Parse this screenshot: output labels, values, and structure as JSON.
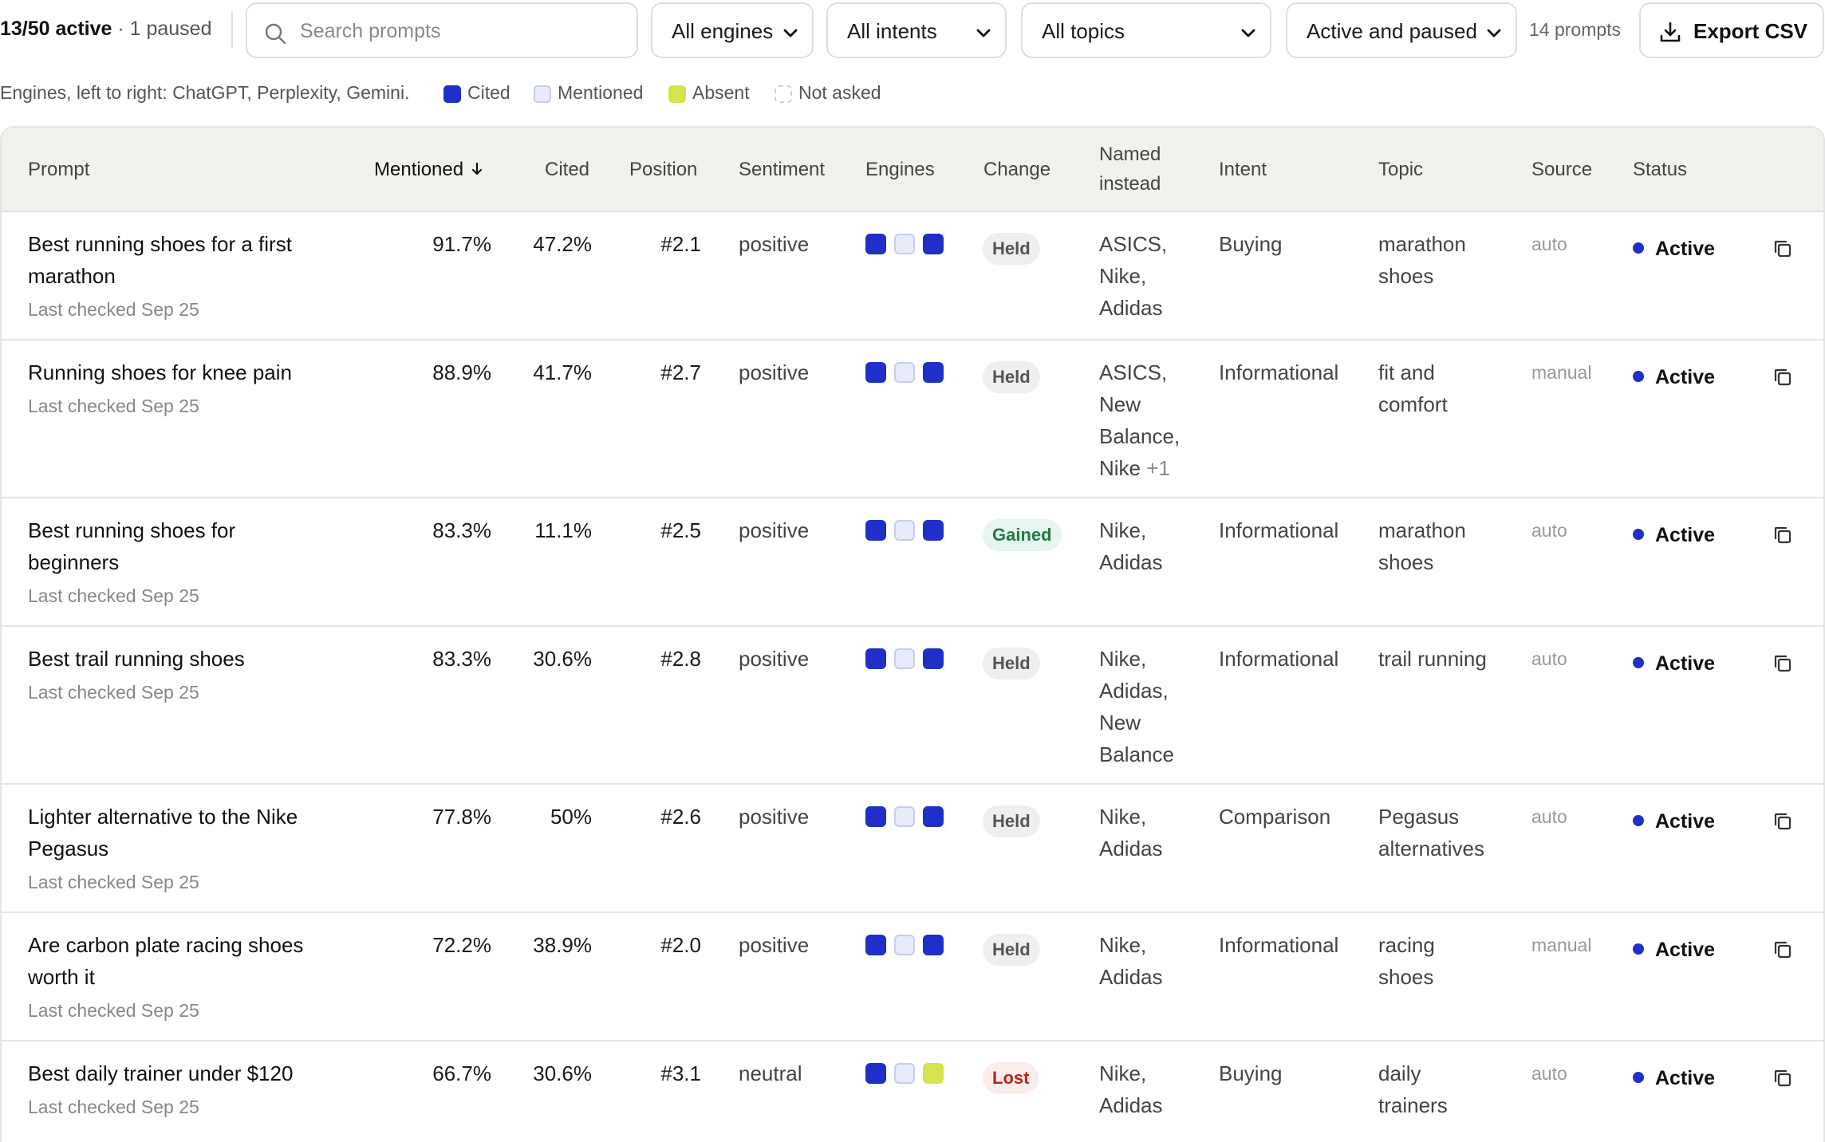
{
  "toolbar": {
    "count_active": "13/50 active",
    "count_paused": " · 1 paused",
    "search_placeholder": "Search prompts",
    "filters": {
      "engines": "All engines",
      "intents": "All intents",
      "topics": "All topics",
      "status": "Active and paused"
    },
    "prompt_count": "14 prompts",
    "export_label": "Export CSV",
    "icons": {
      "search": "search-icon",
      "chevron": "chevron-down-icon",
      "export": "download-icon"
    }
  },
  "legend": {
    "note": "Engines, left to right: ChatGPT, Perplexity, Gemini.",
    "items": [
      {
        "label": "Cited",
        "color": "#1f2fc7"
      },
      {
        "label": "Mentioned",
        "color": "#e8ebfa"
      },
      {
        "label": "Absent",
        "color": "#d6e34a"
      },
      {
        "label": "Not asked",
        "color": "#ffffff"
      }
    ]
  },
  "table": {
    "headers": {
      "prompt": "Prompt",
      "mentioned": "Mentioned",
      "cited": "Cited",
      "position": "Position",
      "sentiment": "Sentiment",
      "engines": "Engines",
      "change": "Change",
      "named_instead_1": "Named",
      "named_instead_2": "instead",
      "intent": "Intent",
      "topic": "Topic",
      "source": "Source",
      "status": "Status"
    },
    "sort_icon": "arrow-down-icon",
    "copy_icon": "copy-icon",
    "status_label": "Active",
    "change_colors": {
      "Held": {
        "bg": "#efefef",
        "fg": "#555555"
      },
      "Gained": {
        "bg": "#e6f6ee",
        "fg": "#1f7a44"
      },
      "Lost": {
        "bg": "#fdecec",
        "fg": "#b3261e"
      }
    },
    "rows": [
      {
        "title_lines": [
          "Best running shoes for a first",
          "marathon"
        ],
        "checked": "Last checked Sep 25",
        "mentioned": "91.7%",
        "cited": "47.2%",
        "position": "#2.1",
        "sentiment": "positive",
        "engines": [
          "Cited",
          "Mentioned",
          "Cited"
        ],
        "change": "Held",
        "named_lines": [
          "ASICS,",
          "Nike,",
          "Adidas"
        ],
        "named_more": "",
        "intent": "Buying",
        "topic_lines": [
          "marathon",
          "shoes"
        ],
        "source": "auto",
        "status": "Active"
      },
      {
        "title_lines": [
          "Running shoes for knee pain"
        ],
        "checked": "Last checked Sep 25",
        "mentioned": "88.9%",
        "cited": "41.7%",
        "position": "#2.7",
        "sentiment": "positive",
        "engines": [
          "Cited",
          "Mentioned",
          "Cited"
        ],
        "change": "Held",
        "named_lines": [
          "ASICS,",
          "New",
          "Balance,",
          "Nike"
        ],
        "named_more": "+1",
        "intent": "Informational",
        "topic_lines": [
          "fit and",
          "comfort"
        ],
        "source": "manual",
        "status": "Active"
      },
      {
        "title_lines": [
          "Best running shoes for",
          "beginners"
        ],
        "checked": "Last checked Sep 25",
        "mentioned": "83.3%",
        "cited": "11.1%",
        "position": "#2.5",
        "sentiment": "positive",
        "engines": [
          "Cited",
          "Mentioned",
          "Cited"
        ],
        "change": "Gained",
        "named_lines": [
          "Nike,",
          "Adidas"
        ],
        "named_more": "",
        "intent": "Informational",
        "topic_lines": [
          "marathon",
          "shoes"
        ],
        "source": "auto",
        "status": "Active"
      },
      {
        "title_lines": [
          "Best trail running shoes"
        ],
        "checked": "Last checked Sep 25",
        "mentioned": "83.3%",
        "cited": "30.6%",
        "position": "#2.8",
        "sentiment": "positive",
        "engines": [
          "Cited",
          "Mentioned",
          "Cited"
        ],
        "change": "Held",
        "named_lines": [
          "Nike,",
          "Adidas,",
          "New",
          "Balance"
        ],
        "named_more": "",
        "intent": "Informational",
        "topic_lines": [
          "trail running"
        ],
        "source": "auto",
        "status": "Active"
      },
      {
        "title_lines": [
          "Lighter alternative to the Nike",
          "Pegasus"
        ],
        "checked": "Last checked Sep 25",
        "mentioned": "77.8%",
        "cited": "50%",
        "position": "#2.6",
        "sentiment": "positive",
        "engines": [
          "Cited",
          "Mentioned",
          "Cited"
        ],
        "change": "Held",
        "named_lines": [
          "Nike,",
          "Adidas"
        ],
        "named_more": "",
        "intent": "Comparison",
        "topic_lines": [
          "Pegasus",
          "alternatives"
        ],
        "source": "auto",
        "status": "Active"
      },
      {
        "title_lines": [
          "Are carbon plate racing shoes",
          "worth it"
        ],
        "checked": "Last checked Sep 25",
        "mentioned": "72.2%",
        "cited": "38.9%",
        "position": "#2.0",
        "sentiment": "positive",
        "engines": [
          "Cited",
          "Mentioned",
          "Cited"
        ],
        "change": "Held",
        "named_lines": [
          "Nike,",
          "Adidas"
        ],
        "named_more": "",
        "intent": "Informational",
        "topic_lines": [
          "racing",
          "shoes"
        ],
        "source": "manual",
        "status": "Active"
      },
      {
        "title_lines": [
          "Best daily trainer under $120"
        ],
        "checked": "Last checked Sep 25",
        "mentioned": "66.7%",
        "cited": "30.6%",
        "position": "#3.1",
        "sentiment": "neutral",
        "engines": [
          "Cited",
          "Mentioned",
          "Absent"
        ],
        "change": "Lost",
        "named_lines": [
          "Nike,",
          "Adidas"
        ],
        "named_more": "",
        "intent": "Buying",
        "topic_lines": [
          "daily",
          "trainers"
        ],
        "source": "auto",
        "status": "Active"
      }
    ]
  }
}
